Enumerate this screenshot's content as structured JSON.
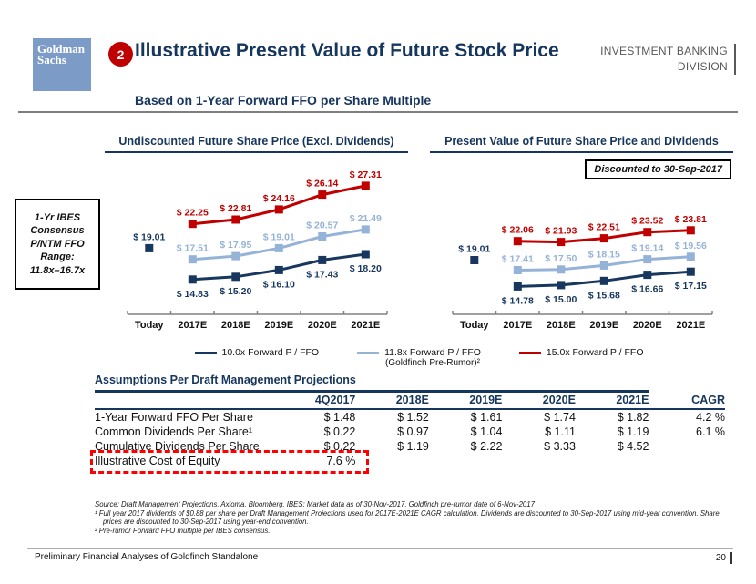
{
  "colors": {
    "accent_navy": "#17365D",
    "series_low": "#17375E",
    "series_mid": "#95B3D7",
    "series_high": "#C00000",
    "badge_red": "#C00000",
    "logo_blue": "#7D9BC7"
  },
  "header": {
    "logo_line1": "Goldman",
    "logo_line2": "Sachs",
    "badge": "2",
    "title": "Illustrative Present Value of Future Stock Price",
    "subtitle": "Based on 1-Year Forward FFO per Share Multiple",
    "division_line1": "INVESTMENT BANKING",
    "division_line2": "DIVISION"
  },
  "side_note": {
    "lines": [
      "1-Yr IBES",
      "Consensus",
      "P/NTM FFO",
      "Range:",
      "11.8x–16.7x"
    ]
  },
  "chart_data": [
    {
      "type": "line",
      "title": "Undiscounted Future Share Price (Excl. Dividends)",
      "categories": [
        "Today",
        "2017E",
        "2018E",
        "2019E",
        "2020E",
        "2021E"
      ],
      "today_value": 19.01,
      "ylim": [
        10.2,
        29.0
      ],
      "series": [
        {
          "name": "10.0x Forward P / FFO",
          "color_key": "series_low",
          "label_position": "below",
          "values": [
            14.83,
            15.2,
            16.1,
            17.43,
            18.2
          ]
        },
        {
          "name": "11.8x Forward P / FFO (Goldfinch Pre-Rumor)²",
          "color_key": "series_mid",
          "label_position": "above",
          "values": [
            17.51,
            17.95,
            19.01,
            20.57,
            21.49
          ]
        },
        {
          "name": "15.0x Forward P / FFO",
          "color_key": "series_high",
          "label_position": "above",
          "values": [
            22.25,
            22.81,
            24.16,
            26.14,
            27.31
          ]
        }
      ]
    },
    {
      "type": "line",
      "title": "Present Value of Future Share Price and Dividends",
      "callout": "Discounted to 30-Sep-2017",
      "categories": [
        "Today",
        "2017E",
        "2018E",
        "2019E",
        "2020E",
        "2021E"
      ],
      "today_value": 19.01,
      "ylim": [
        10.3,
        33.0
      ],
      "series": [
        {
          "name": "10.0x Forward P / FFO",
          "color_key": "series_low",
          "label_position": "below",
          "values": [
            14.78,
            15.0,
            15.68,
            16.66,
            17.15
          ]
        },
        {
          "name": "11.8x Forward P / FFO (Goldfinch Pre-Rumor)²",
          "color_key": "series_mid",
          "label_position": "above",
          "values": [
            17.41,
            17.5,
            18.15,
            19.14,
            19.56
          ]
        },
        {
          "name": "15.0x Forward P / FFO",
          "color_key": "series_high",
          "label_position": "above",
          "values": [
            22.06,
            21.93,
            22.51,
            23.52,
            23.81
          ]
        }
      ]
    }
  ],
  "legend": {
    "items": [
      {
        "label": "10.0x Forward P / FFO",
        "sublabel": "",
        "color": "#17375E"
      },
      {
        "label": "11.8x Forward P / FFO",
        "sublabel": "(Goldfinch Pre-Rumor)²",
        "color": "#95B3D7"
      },
      {
        "label": "15.0x Forward P / FFO",
        "sublabel": "",
        "color": "#C00000"
      }
    ]
  },
  "table": {
    "title": "Assumptions Per Draft Management Projections",
    "columns": [
      "4Q2017",
      "2018E",
      "2019E",
      "2020E",
      "2021E",
      "CAGR"
    ],
    "rows": [
      {
        "label": "1-Year Forward FFO Per Share",
        "values": [
          "$ 1.48",
          "$ 1.52",
          "$ 1.61",
          "$ 1.74",
          "$ 1.82",
          "4.2 %"
        ]
      },
      {
        "label": "Common Dividends Per Share¹",
        "values": [
          "$ 0.22",
          "$ 0.97",
          "$ 1.04",
          "$ 1.11",
          "$ 1.19",
          "6.1 %"
        ]
      },
      {
        "label": "Cumulative Dividends Per Share",
        "values": [
          "$ 0.22",
          "$ 1.19",
          "$ 2.22",
          "$ 3.33",
          "$ 4.52",
          ""
        ]
      },
      {
        "label": "Illustrative Cost of Equity",
        "values": [
          "7.6 %",
          "",
          "",
          "",
          "",
          ""
        ],
        "highlighted": true
      }
    ]
  },
  "footnotes": [
    "Source: Draft Management Projections, Axioma, Bloomberg, IBES; Market data as of 30-Nov-2017, Goldfinch pre-rumor date of 6-Nov-2017",
    "¹ Full year 2017 dividends of $0.88 per share per Draft Management Projections used for 2017E-2021E CAGR calculation. Dividends are discounted to 30-Sep-2017 using mid-year convention. Share prices are discounted to 30-Sep-2017 using year-end convention.",
    "² Pre-rumor Forward FFO multiple per IBES consensus."
  ],
  "footer": {
    "left": "Preliminary Financial Analyses of Goldfinch Standalone",
    "page": "20"
  }
}
